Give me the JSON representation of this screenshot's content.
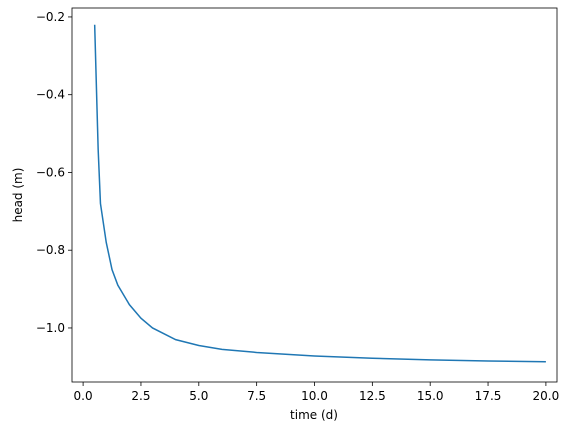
{
  "chart_data": {
    "type": "line",
    "x_label": "time (d)",
    "y_label": "head (m)",
    "x": [
      0.5,
      0.65,
      0.75,
      1,
      1.25,
      1.5,
      2,
      2.5,
      3,
      4,
      5,
      6,
      7.5,
      10,
      12.5,
      15,
      17.5,
      20
    ],
    "series": [
      {
        "color": "#1f77b4",
        "values": [
          -0.22,
          -0.54,
          -0.68,
          -0.78,
          -0.85,
          -0.89,
          -0.94,
          -0.975,
          -1.0,
          -1.03,
          -1.045,
          -1.055,
          -1.063,
          -1.072,
          -1.078,
          -1.082,
          -1.085,
          -1.087
        ]
      }
    ],
    "xlim": [
      -0.48,
      20.48
    ],
    "ylim": [
      -1.139,
      -0.177
    ],
    "xticks": [
      {
        "value": 0,
        "label": "0.0"
      },
      2.5,
      {
        "value": 5,
        "label": "5.0"
      },
      7.5,
      {
        "value": 10,
        "label": "10.0"
      },
      12.5,
      {
        "value": 15,
        "label": "15.0"
      },
      17.5,
      {
        "value": 20,
        "label": "20.0"
      }
    ],
    "yticks": [
      {
        "value": -1.0,
        "label": "−1.0"
      },
      {
        "value": -0.8,
        "label": "−0.8"
      },
      {
        "value": -0.6,
        "label": "−0.6"
      },
      {
        "value": -0.4,
        "label": "−0.4"
      },
      {
        "value": -0.2,
        "label": "−0.2"
      }
    ],
    "grid": false
  }
}
